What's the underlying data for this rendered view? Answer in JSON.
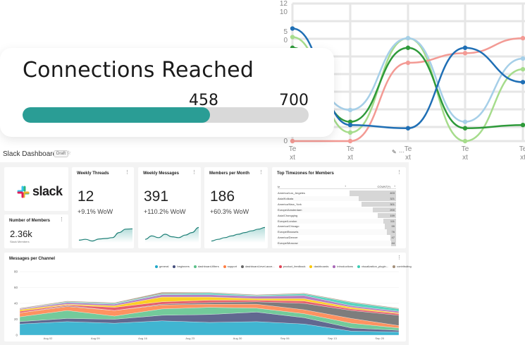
{
  "background_chart": {
    "y_ticks": [
      "12",
      "10",
      "5",
      "0",
      "0"
    ],
    "x_ticks": [
      "Te xt",
      "Te xt",
      "Te xt",
      "Te xt",
      "Te xt"
    ],
    "series_colors": [
      "#1f6fb5",
      "#2e9a3a",
      "#f39a94",
      "#a6cfe8",
      "#a6dc8c"
    ]
  },
  "connections": {
    "title": "Connections Reached",
    "current": "458",
    "max": "700",
    "progress_fraction": 0.654,
    "bar_color": "#2a9d95"
  },
  "dashboard": {
    "title": "Slack Dashboard",
    "badge": "Draft"
  },
  "tiles": {
    "logo_text": "slack",
    "members": {
      "title": "Number of Members",
      "value": "2.36k",
      "sub": "Slack Members"
    },
    "threads": {
      "title": "Weekly Threads",
      "value": "12",
      "change": "+9.1% WoW",
      "trend": [
        0.15,
        0.2,
        0.1,
        0.22,
        0.25,
        0.3,
        0.6,
        0.8,
        0.82
      ]
    },
    "messages": {
      "title": "Weekly Messages",
      "value": "391",
      "change": "+110.2% WoW",
      "trend": [
        0.2,
        0.4,
        0.3,
        0.5,
        0.35,
        0.3,
        0.45,
        0.6,
        0.9
      ]
    },
    "per_month": {
      "title": "Members per Month",
      "value": "186",
      "change": "+60.3% WoW",
      "trend": [
        0.1,
        0.2,
        0.3,
        0.4,
        0.5,
        0.6,
        0.7,
        0.8,
        0.9
      ]
    },
    "timezones": {
      "title": "Top Timezones for Members",
      "col_tz": "tz",
      "col_count": "COUNT(*)",
      "rows": [
        {
          "tz": "America/Los_Angeles",
          "count": "403",
          "frac": 1.0
        },
        {
          "tz": "Asia/Kolkata",
          "count": "321",
          "frac": 0.8
        },
        {
          "tz": "America/New_York",
          "count": "301",
          "frac": 0.75
        },
        {
          "tz": "Europe/Amsterdam",
          "count": "200",
          "frac": 0.5
        },
        {
          "tz": "Asia/Chongqing",
          "count": "159",
          "frac": 0.39
        },
        {
          "tz": "Europe/London",
          "count": "111",
          "frac": 0.28
        },
        {
          "tz": "America/Chicago",
          "count": "99",
          "frac": 0.25
        },
        {
          "tz": "Europe/Brussels",
          "count": "76",
          "frac": 0.19
        },
        {
          "tz": "America/Denver",
          "count": "47",
          "frac": 0.12
        },
        {
          "tz": "Europe/Moscow",
          "count": "44",
          "frac": 0.11
        }
      ]
    },
    "mpc": {
      "title": "Messages per Channel",
      "legend": [
        {
          "name": "general",
          "color": "#1fa8c9"
        },
        {
          "name": "beginners",
          "color": "#454e7c"
        },
        {
          "name": "dashboard-filters",
          "color": "#5ac189"
        },
        {
          "name": "support",
          "color": "#ff7f44"
        },
        {
          "name": "dashboard-level-acce...",
          "color": "#666666"
        },
        {
          "name": "product_feedback",
          "color": "#e04355"
        },
        {
          "name": "dashboards",
          "color": "#fcc700"
        },
        {
          "name": "introductions",
          "color": "#a868b7"
        },
        {
          "name": "visualization_plugin...",
          "color": "#3cccb4"
        },
        {
          "name": "contributing",
          "color": "#a38f79"
        }
      ],
      "y_ticks": [
        "80",
        "60",
        "40",
        "20",
        "0"
      ],
      "x_ticks": [
        "Aug 02",
        "Aug 09",
        "Aug 16",
        "Aug 23",
        "Aug 30",
        "Sep 06",
        "Sep 13",
        "Sep 20",
        "Sep 27"
      ]
    }
  },
  "chart_data": [
    {
      "type": "line",
      "x": [
        "Te xt",
        "Te xt",
        "Te xt",
        "Te xt",
        "Te xt"
      ],
      "y_ticks": [
        "12",
        "10",
        "5",
        "0"
      ],
      "series": [
        {
          "values": [
            10.5,
            1.5,
            1.2,
            8.7,
            5.5
          ]
        },
        {
          "values": [
            8.7,
            1.8,
            8.7,
            1.2,
            1.5
          ]
        },
        {
          "values": [
            0.0,
            0.0,
            7.3,
            8.2,
            9.6
          ]
        },
        {
          "values": [
            7.8,
            2.9,
            9.6,
            1.8,
            7.7
          ]
        },
        {
          "values": [
            9.7,
            0.8,
            9.6,
            0.0,
            6.7
          ]
        }
      ]
    },
    {
      "type": "area",
      "title": "Messages per Channel",
      "categories": [
        "Aug 02",
        "Aug 09",
        "Aug 16",
        "Aug 23",
        "Aug 30",
        "Sep 06",
        "Sep 13",
        "Sep 20",
        "Sep 27"
      ],
      "ylim": [
        0,
        80
      ],
      "series": [
        {
          "name": "general",
          "values": [
            14,
            17,
            15,
            18,
            16,
            17,
            14,
            5,
            4
          ]
        },
        {
          "name": "beginners",
          "values": [
            3,
            4,
            5,
            7,
            10,
            12,
            8,
            4,
            2
          ]
        },
        {
          "name": "dashboard-filters",
          "values": [
            6,
            10,
            4,
            8,
            9,
            5,
            5,
            6,
            3
          ]
        },
        {
          "name": "support",
          "values": [
            5,
            5,
            7,
            5,
            4,
            5,
            5,
            6,
            3
          ]
        },
        {
          "name": "dashboard-level-acce...",
          "values": [
            0,
            1,
            0,
            1,
            2,
            3,
            8,
            10,
            13
          ]
        },
        {
          "name": "product_feedback",
          "values": [
            2,
            1,
            4,
            3,
            3,
            2,
            3,
            2,
            2
          ]
        },
        {
          "name": "dashboards",
          "values": [
            2,
            1,
            2,
            6,
            4,
            2,
            3,
            2,
            1
          ]
        },
        {
          "name": "introductions",
          "values": [
            1,
            2,
            2,
            3,
            3,
            3,
            4,
            2,
            2
          ]
        },
        {
          "name": "visualization_plugin...",
          "values": [
            0,
            1,
            1,
            1,
            2,
            1,
            2,
            4,
            3
          ]
        },
        {
          "name": "contributing",
          "values": [
            1,
            1,
            1,
            2,
            1,
            1,
            1,
            1,
            1
          ]
        }
      ]
    }
  ]
}
